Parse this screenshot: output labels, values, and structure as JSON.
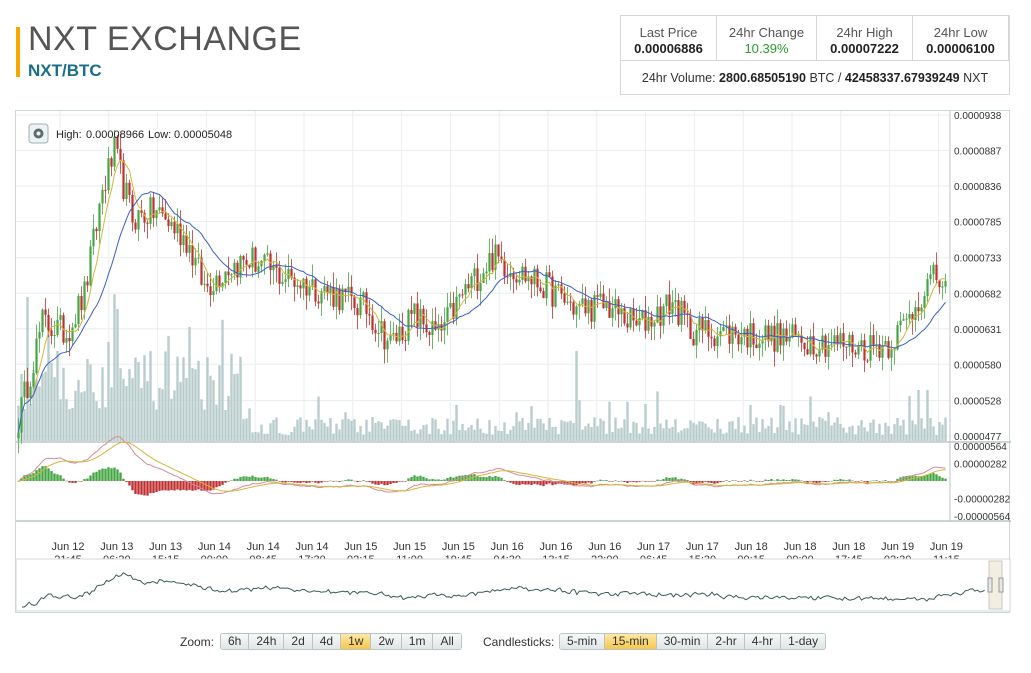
{
  "header": {
    "title": "NXT EXCHANGE",
    "pair": "NXT/BTC"
  },
  "stats": {
    "last_price": {
      "label": "Last Price",
      "value": "0.00006886"
    },
    "change_24h": {
      "label": "24hr Change",
      "value": "10.39%"
    },
    "high_24h": {
      "label": "24hr High",
      "value": "0.00007222"
    },
    "low_24h": {
      "label": "24hr Low",
      "value": "0.00006100"
    },
    "volume": {
      "label": "24hr Volume:",
      "btc_value": "2800.68505190",
      "btc_unit": "BTC",
      "separator": "/",
      "nxt_value": "42458337.67939249",
      "nxt_unit": "NXT"
    }
  },
  "chart_info": {
    "high_label": "High:",
    "high_value": "0.00008966",
    "low_label": "Low:",
    "low_value": "0.00005048"
  },
  "controls": {
    "zoom_label": "Zoom:",
    "zoom_options": [
      "6h",
      "24h",
      "2d",
      "4d",
      "1w",
      "2w",
      "1m",
      "All"
    ],
    "zoom_active": "1w",
    "candle_label": "Candlesticks:",
    "candle_options": [
      "5-min",
      "15-min",
      "30-min",
      "2-hr",
      "4-hr",
      "1-day"
    ],
    "candle_active": "15-min"
  },
  "colors": {
    "accent": "#f6a800",
    "pair_text": "#1a6e86",
    "candle_up": "#44a644",
    "candle_down": "#c03030",
    "volume_bar": "#b8cccc",
    "sma_fast": "#d4b63a",
    "sma_slow": "#3a5fcc",
    "macd_up": "#44a644",
    "macd_down": "#c03030",
    "macd_line": "#d48a9a",
    "signal_line": "#d4b63a",
    "navigator": "#3c5a5a"
  },
  "chart_data": {
    "type": "candlestick",
    "price_axis_ticks": [
      "0.0000938",
      "0.0000887",
      "0.0000836",
      "0.0000785",
      "0.0000733",
      "0.0000682",
      "0.0000631",
      "0.0000580",
      "0.0000528",
      "0.0000477"
    ],
    "price_range": [
      4.77e-05,
      9.38e-05
    ],
    "macd_axis_ticks": [
      "0.00000564",
      "0.00000282",
      "-0.00000282",
      "-0.00000564"
    ],
    "macd_range": [
      -5.64e-06,
      5.64e-06
    ],
    "x_axis_ticks": [
      [
        "Jun 12",
        "21:45"
      ],
      [
        "Jun 13",
        "06:30"
      ],
      [
        "Jun 13",
        "15:15"
      ],
      [
        "Jun 14",
        "00:00"
      ],
      [
        "Jun 14",
        "08:45"
      ],
      [
        "Jun 14",
        "17:30"
      ],
      [
        "Jun 15",
        "02:15"
      ],
      [
        "Jun 15",
        "11:00"
      ],
      [
        "Jun 15",
        "19:45"
      ],
      [
        "Jun 16",
        "04:30"
      ],
      [
        "Jun 16",
        "13:15"
      ],
      [
        "Jun 16",
        "22:00"
      ],
      [
        "Jun 17",
        "06:45"
      ],
      [
        "Jun 17",
        "15:30"
      ],
      [
        "Jun 18",
        "00:15"
      ],
      [
        "Jun 18",
        "09:00"
      ],
      [
        "Jun 18",
        "17:45"
      ],
      [
        "Jun 19",
        "02:30"
      ],
      [
        "Jun 19",
        "11:15"
      ]
    ],
    "close_anchors": [
      [
        0,
        5e-05
      ],
      [
        8,
        6.4e-05
      ],
      [
        16,
        6.25e-05
      ],
      [
        22,
        6.8e-05
      ],
      [
        28,
        8.3e-05
      ],
      [
        32,
        8.85e-05
      ],
      [
        38,
        7.9e-05
      ],
      [
        46,
        8e-05
      ],
      [
        56,
        7.6e-05
      ],
      [
        62,
        6.9e-05
      ],
      [
        70,
        7.2e-05
      ],
      [
        78,
        7.3e-05
      ],
      [
        86,
        7.1e-05
      ],
      [
        96,
        6.95e-05
      ],
      [
        106,
        6.8e-05
      ],
      [
        116,
        6.6e-05
      ],
      [
        124,
        6.1e-05
      ],
      [
        132,
        6.5e-05
      ],
      [
        140,
        6.2e-05
      ],
      [
        148,
        6.8e-05
      ],
      [
        158,
        7.35e-05
      ],
      [
        166,
        7.15e-05
      ],
      [
        176,
        6.9e-05
      ],
      [
        186,
        6.6e-05
      ],
      [
        196,
        6.65e-05
      ],
      [
        206,
        6.35e-05
      ],
      [
        214,
        6.55e-05
      ],
      [
        218,
        6.7e-05
      ],
      [
        224,
        6.3e-05
      ],
      [
        236,
        6.25e-05
      ],
      [
        250,
        6.2e-05
      ],
      [
        262,
        6.15e-05
      ],
      [
        274,
        6.1e-05
      ],
      [
        282,
        6.05e-05
      ],
      [
        290,
        6.1e-05
      ],
      [
        296,
        6.4e-05
      ],
      [
        302,
        6.9e-05
      ],
      [
        306,
        7.05e-05
      ],
      [
        309,
        6.88e-05
      ]
    ],
    "volume_spikes": [
      [
        3,
        0.48
      ],
      [
        10,
        0.38
      ],
      [
        13,
        0.3
      ],
      [
        30,
        0.33
      ],
      [
        37,
        0.24
      ],
      [
        57,
        0.38
      ],
      [
        70,
        0.15
      ],
      [
        146,
        0.12
      ],
      [
        186,
        0.3
      ],
      [
        244,
        0.12
      ],
      [
        297,
        0.15
      ],
      [
        300,
        0.17
      ],
      [
        303,
        0.17
      ]
    ]
  }
}
